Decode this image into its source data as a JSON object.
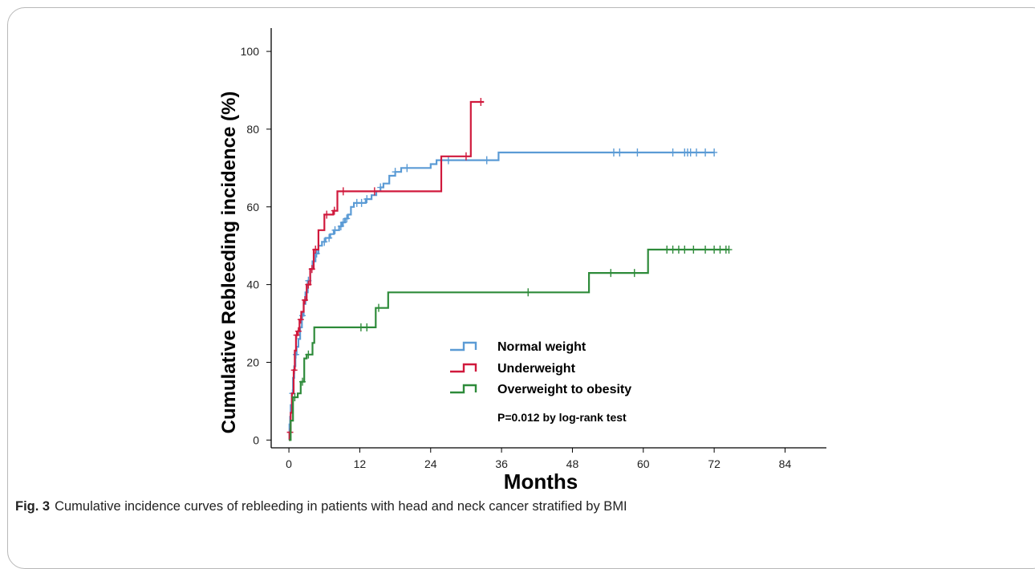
{
  "figure": {
    "caption_label": "Fig. 3",
    "caption_text": "Cumulative incidence curves of rebleeding in patients with head and neck cancer stratified by BMI"
  },
  "chart_data": {
    "type": "line",
    "step": true,
    "xlabel": "Months",
    "ylabel": "Cumulative Rebleeding incidence (%)",
    "xlim": [
      -3,
      91
    ],
    "ylim": [
      -2,
      106
    ],
    "xticks": [
      0,
      12,
      24,
      36,
      48,
      60,
      72,
      84
    ],
    "yticks": [
      0,
      20,
      40,
      60,
      80,
      100
    ],
    "grid": false,
    "legend_position": "lower-center",
    "annotation": "P=0.012 by log-rank test",
    "series": [
      {
        "name": "Normal weight",
        "color": "#5b9bd5",
        "points": [
          [
            0,
            0
          ],
          [
            0.1,
            4
          ],
          [
            0.2,
            6
          ],
          [
            0.3,
            9
          ],
          [
            0.5,
            12
          ],
          [
            0.7,
            16
          ],
          [
            0.9,
            19
          ],
          [
            1.1,
            22
          ],
          [
            1.3,
            24
          ],
          [
            1.6,
            26
          ],
          [
            1.9,
            29
          ],
          [
            2.2,
            32
          ],
          [
            2.5,
            35
          ],
          [
            2.8,
            38
          ],
          [
            3.2,
            41
          ],
          [
            3.6,
            44
          ],
          [
            4.0,
            46
          ],
          [
            4.5,
            48
          ],
          [
            5.0,
            50
          ],
          [
            5.6,
            51
          ],
          [
            6.2,
            52
          ],
          [
            7.0,
            53
          ],
          [
            7.6,
            54
          ],
          [
            8.5,
            55
          ],
          [
            9.0,
            56
          ],
          [
            9.5,
            57
          ],
          [
            10,
            58
          ],
          [
            10.5,
            60
          ],
          [
            11,
            61
          ],
          [
            13,
            62
          ],
          [
            14,
            63
          ],
          [
            14.8,
            64
          ],
          [
            15.5,
            65
          ],
          [
            16,
            66
          ],
          [
            17,
            68
          ],
          [
            18,
            69
          ],
          [
            19,
            70
          ],
          [
            24,
            71
          ],
          [
            25,
            72
          ],
          [
            35,
            72
          ],
          [
            35.5,
            74
          ],
          [
            72,
            74
          ]
        ],
        "censored": [
          [
            0.6,
            12
          ],
          [
            1.2,
            22
          ],
          [
            2.3,
            32
          ],
          [
            3.3,
            41
          ],
          [
            4.7,
            48
          ],
          [
            6.0,
            51
          ],
          [
            6.8,
            52
          ],
          [
            7.8,
            54
          ],
          [
            8.8,
            55
          ],
          [
            9.2,
            56
          ],
          [
            9.8,
            57
          ],
          [
            11.5,
            61
          ],
          [
            12.3,
            61
          ],
          [
            13.2,
            62
          ],
          [
            15.5,
            65
          ],
          [
            18,
            69
          ],
          [
            20,
            70
          ],
          [
            27,
            72
          ],
          [
            33.5,
            72
          ],
          [
            55,
            74
          ],
          [
            56,
            74
          ],
          [
            59,
            74
          ],
          [
            65,
            74
          ],
          [
            67,
            74
          ],
          [
            67.5,
            74
          ],
          [
            68,
            74
          ],
          [
            69,
            74
          ],
          [
            70.5,
            74
          ],
          [
            72,
            74
          ]
        ]
      },
      {
        "name": "Underweight",
        "color": "#d0193c",
        "points": [
          [
            0,
            0
          ],
          [
            0.1,
            2
          ],
          [
            0.3,
            7
          ],
          [
            0.5,
            12
          ],
          [
            0.8,
            18
          ],
          [
            1.0,
            23
          ],
          [
            1.2,
            27
          ],
          [
            1.5,
            28
          ],
          [
            1.8,
            31
          ],
          [
            2.1,
            33
          ],
          [
            2.5,
            36
          ],
          [
            3.0,
            40
          ],
          [
            3.6,
            44
          ],
          [
            4.2,
            49
          ],
          [
            5.0,
            54
          ],
          [
            6.0,
            58
          ],
          [
            7.5,
            59
          ],
          [
            8.2,
            64
          ],
          [
            25.5,
            64
          ],
          [
            25.8,
            73
          ],
          [
            30.5,
            73
          ],
          [
            30.8,
            87
          ],
          [
            33,
            87
          ]
        ],
        "censored": [
          [
            0.2,
            2
          ],
          [
            0.9,
            18
          ],
          [
            1.3,
            27
          ],
          [
            1.6,
            28
          ],
          [
            2.0,
            31
          ],
          [
            2.7,
            36
          ],
          [
            3.3,
            40
          ],
          [
            3.9,
            44
          ],
          [
            4.5,
            49
          ],
          [
            6.4,
            58
          ],
          [
            7.7,
            59
          ],
          [
            9.2,
            64
          ],
          [
            14.5,
            64
          ],
          [
            30.0,
            73
          ],
          [
            32.5,
            87
          ]
        ]
      },
      {
        "name": "Overweight to obesity",
        "color": "#2e8b3a",
        "points": [
          [
            0,
            0
          ],
          [
            0.3,
            5
          ],
          [
            0.7,
            11
          ],
          [
            1.5,
            12
          ],
          [
            2.0,
            15
          ],
          [
            2.6,
            21
          ],
          [
            3.0,
            22
          ],
          [
            4.0,
            25
          ],
          [
            4.3,
            29
          ],
          [
            14.5,
            29
          ],
          [
            14.7,
            34
          ],
          [
            16.5,
            34
          ],
          [
            16.8,
            38
          ],
          [
            50.5,
            38
          ],
          [
            50.8,
            43
          ],
          [
            60.5,
            43
          ],
          [
            60.8,
            49
          ],
          [
            74.5,
            49
          ]
        ],
        "censored": [
          [
            1.0,
            11
          ],
          [
            2.3,
            15
          ],
          [
            3.3,
            22
          ],
          [
            12.2,
            29
          ],
          [
            13.2,
            29
          ],
          [
            15.2,
            34
          ],
          [
            40.5,
            38
          ],
          [
            54.5,
            43
          ],
          [
            58.5,
            43
          ],
          [
            64,
            49
          ],
          [
            65,
            49
          ],
          [
            66,
            49
          ],
          [
            67,
            49
          ],
          [
            68.5,
            49
          ],
          [
            70.5,
            49
          ],
          [
            72,
            49
          ],
          [
            73,
            49
          ],
          [
            74,
            49
          ],
          [
            74.5,
            49
          ]
        ]
      }
    ]
  }
}
